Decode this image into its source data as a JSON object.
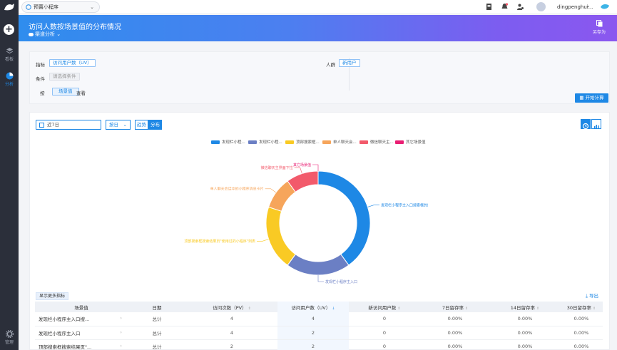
{
  "sidebar": {
    "items": [
      {
        "label": "看板",
        "icon": "layers-icon"
      },
      {
        "label": "分析",
        "icon": "analysis-icon"
      },
      {
        "label": "管理",
        "icon": "gear-icon"
      }
    ]
  },
  "topbar": {
    "app_name": "预置小程序",
    "username": "dingpenghui..."
  },
  "banner": {
    "title": "访问人数按场景值的分布情况",
    "subtitle": "渠道分析",
    "save_as": "另存为"
  },
  "filters": {
    "metric_label": "指标",
    "metric_value": "访问用户数（UV）",
    "condition_label": "条件",
    "condition_placeholder": "请选择条件",
    "by_label": "按",
    "by_value": "场景值",
    "by_suffix": "查看",
    "crowd_label": "人群",
    "crowd_value": "新用户",
    "start_button": "开始计算"
  },
  "toolbar": {
    "date_range": "近7日",
    "granularity": "按日",
    "trend_label": "趋势",
    "dist_label": "分布"
  },
  "legend": [
    {
      "label": "发现栏小程...",
      "color": "#1e88e5"
    },
    {
      "label": "发现栏小程...",
      "color": "#6b7fc4"
    },
    {
      "label": "顶部搜索框...",
      "color": "#f9ca24"
    },
    {
      "label": "单人聊天会...",
      "color": "#f6a55b"
    },
    {
      "label": "微信聊天主...",
      "color": "#f25a6b"
    },
    {
      "label": "其它场景值",
      "color": "#e91e73"
    }
  ],
  "chart_data": {
    "type": "pie",
    "categories": [
      "发现栏小程序主入口搜索框的搜索结果页",
      "发现栏小程序主入口",
      "顶部搜索框搜索结果页\"使用过的小程序\"列表",
      "单人聊天会话中的小程序消息卡片",
      "微信聊天主界面下拉",
      "其它场景值"
    ],
    "values": [
      4,
      2,
      2,
      1,
      1,
      0
    ],
    "colors": [
      "#1e88e5",
      "#6b7fc4",
      "#f9ca24",
      "#f6a55b",
      "#f25a6b",
      "#e91e73"
    ]
  },
  "table": {
    "more_button": "显示更多指标",
    "export_label": "导出",
    "headers": [
      "场景值",
      "日期",
      "访问次数（PV）",
      "访问用户数（UV）",
      "新访问用户数",
      "7日留存率",
      "14日留存率",
      "30日留存率"
    ],
    "rows": [
      [
        "发现栏小程序主入口搜...",
        "总计",
        "4",
        "4",
        "0",
        "0.00%",
        "0.00%",
        "0.00%"
      ],
      [
        "发现栏小程序主入口",
        "总计",
        "4",
        "2",
        "0",
        "0.00%",
        "0.00%",
        "0.00%"
      ],
      [
        "顶部搜索框搜索结果页\"...",
        "总计",
        "2",
        "2",
        "0",
        "0.00%",
        "0.00%",
        "0.00%"
      ]
    ]
  }
}
